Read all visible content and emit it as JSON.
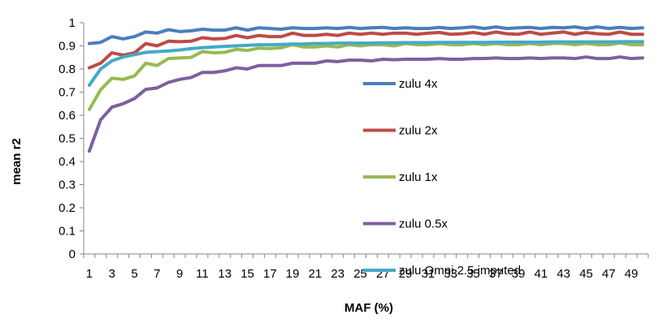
{
  "chart_data": {
    "type": "line",
    "title": "",
    "xlabel": "MAF (%)",
    "ylabel": "mean r2",
    "ylim": [
      0,
      1
    ],
    "yticks": [
      "0",
      "0.1",
      "0.2",
      "0.3",
      "0.4",
      "0.5",
      "0.6",
      "0.7",
      "0.8",
      "0.9",
      "1"
    ],
    "xticks": [
      "1",
      "3",
      "5",
      "7",
      "9",
      "11",
      "13",
      "15",
      "17",
      "19",
      "21",
      "23",
      "25",
      "27",
      "29",
      "31",
      "33",
      "35",
      "37",
      "39",
      "41",
      "43",
      "45",
      "47",
      "49"
    ],
    "x": [
      1,
      2,
      3,
      4,
      5,
      6,
      7,
      8,
      9,
      10,
      11,
      12,
      13,
      14,
      15,
      16,
      17,
      18,
      19,
      20,
      21,
      22,
      23,
      24,
      25,
      26,
      27,
      28,
      29,
      30,
      31,
      32,
      33,
      34,
      35,
      36,
      37,
      38,
      39,
      40,
      41,
      42,
      43,
      44,
      45,
      46,
      47,
      48,
      49,
      50
    ],
    "grid": false,
    "legend_position": "right",
    "series": [
      {
        "name": "zulu 4x",
        "color": "#4a7ebb",
        "values": [
          0.91,
          0.915,
          0.94,
          0.93,
          0.94,
          0.96,
          0.955,
          0.97,
          0.962,
          0.965,
          0.972,
          0.968,
          0.968,
          0.978,
          0.968,
          0.978,
          0.975,
          0.972,
          0.978,
          0.975,
          0.975,
          0.978,
          0.975,
          0.98,
          0.975,
          0.978,
          0.98,
          0.975,
          0.978,
          0.975,
          0.975,
          0.98,
          0.975,
          0.978,
          0.982,
          0.975,
          0.982,
          0.975,
          0.978,
          0.98,
          0.975,
          0.98,
          0.978,
          0.982,
          0.975,
          0.982,
          0.975,
          0.98,
          0.975,
          0.978
        ]
      },
      {
        "name": "zulu 2x",
        "color": "#be4b48",
        "values": [
          0.805,
          0.825,
          0.87,
          0.86,
          0.87,
          0.91,
          0.9,
          0.92,
          0.918,
          0.92,
          0.935,
          0.93,
          0.932,
          0.945,
          0.935,
          0.945,
          0.94,
          0.94,
          0.955,
          0.945,
          0.945,
          0.95,
          0.945,
          0.955,
          0.95,
          0.955,
          0.95,
          0.955,
          0.955,
          0.95,
          0.955,
          0.958,
          0.95,
          0.952,
          0.958,
          0.95,
          0.96,
          0.952,
          0.95,
          0.96,
          0.95,
          0.955,
          0.96,
          0.95,
          0.958,
          0.952,
          0.95,
          0.96,
          0.95,
          0.95
        ]
      },
      {
        "name": "zulu 1x",
        "color": "#98b954",
        "values": [
          0.625,
          0.71,
          0.76,
          0.755,
          0.77,
          0.825,
          0.815,
          0.845,
          0.848,
          0.85,
          0.875,
          0.87,
          0.872,
          0.885,
          0.88,
          0.89,
          0.888,
          0.892,
          0.905,
          0.895,
          0.895,
          0.9,
          0.895,
          0.905,
          0.9,
          0.905,
          0.905,
          0.9,
          0.91,
          0.905,
          0.905,
          0.91,
          0.905,
          0.905,
          0.91,
          0.905,
          0.91,
          0.905,
          0.905,
          0.91,
          0.905,
          0.91,
          0.91,
          0.905,
          0.91,
          0.905,
          0.905,
          0.912,
          0.905,
          0.905
        ]
      },
      {
        "name": "zulu 0.5x",
        "color": "#7d60a0",
        "values": [
          0.445,
          0.58,
          0.635,
          0.65,
          0.672,
          0.712,
          0.718,
          0.742,
          0.755,
          0.763,
          0.785,
          0.785,
          0.792,
          0.805,
          0.8,
          0.815,
          0.815,
          0.815,
          0.825,
          0.825,
          0.825,
          0.835,
          0.832,
          0.838,
          0.838,
          0.835,
          0.842,
          0.84,
          0.842,
          0.842,
          0.842,
          0.845,
          0.842,
          0.842,
          0.845,
          0.845,
          0.848,
          0.845,
          0.845,
          0.848,
          0.845,
          0.848,
          0.848,
          0.845,
          0.852,
          0.845,
          0.845,
          0.852,
          0.845,
          0.848
        ]
      },
      {
        "name": "zulu Omni 2.5 imputed",
        "color": "#46aac5",
        "values": [
          0.73,
          0.8,
          0.835,
          0.852,
          0.862,
          0.872,
          0.875,
          0.878,
          0.882,
          0.888,
          0.892,
          0.895,
          0.898,
          0.9,
          0.902,
          0.905,
          0.905,
          0.906,
          0.908,
          0.908,
          0.91,
          0.91,
          0.912,
          0.912,
          0.912,
          0.912,
          0.913,
          0.913,
          0.914,
          0.914,
          0.914,
          0.915,
          0.915,
          0.915,
          0.915,
          0.915,
          0.916,
          0.916,
          0.916,
          0.916,
          0.916,
          0.917,
          0.917,
          0.917,
          0.917,
          0.917,
          0.917,
          0.918,
          0.918,
          0.918
        ]
      }
    ]
  }
}
